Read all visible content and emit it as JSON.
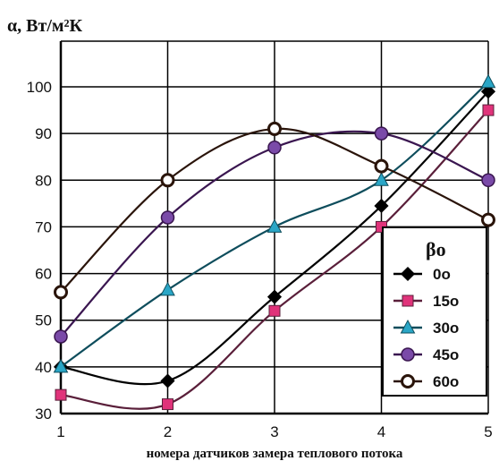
{
  "chart_data": {
    "type": "line",
    "ylabel": "α, Вт/м²К",
    "xlabel": "номера датчиков замера теплового потока",
    "x": [
      1,
      2,
      3,
      4,
      5
    ],
    "xlim": [
      1,
      5
    ],
    "ylim": [
      30,
      100
    ],
    "yticks": [
      30,
      40,
      50,
      60,
      70,
      80,
      90,
      100
    ],
    "grid": true,
    "smooth": true,
    "legend": {
      "title": "βo",
      "placement": "right",
      "entries": [
        "0o",
        "15o",
        "30o",
        "45o",
        "60o"
      ]
    },
    "series": [
      {
        "name": "0o",
        "values": [
          40,
          37,
          55,
          74.5,
          99
        ],
        "marker": "diamond",
        "color": "#000000",
        "marker_fill": "#000000"
      },
      {
        "name": "15o",
        "values": [
          34,
          32,
          52,
          70,
          95
        ],
        "marker": "square",
        "color": "#5a1f3a",
        "marker_fill": "#e0337a"
      },
      {
        "name": "30o",
        "values": [
          40,
          56.5,
          70,
          80,
          101
        ],
        "marker": "triangle",
        "color": "#0e4d5c",
        "marker_fill": "#2aa6c6"
      },
      {
        "name": "45o",
        "values": [
          46.5,
          72,
          87,
          90,
          80
        ],
        "marker": "circle",
        "color": "#3a1650",
        "marker_fill": "#7a4aa8"
      },
      {
        "name": "60o",
        "values": [
          56,
          80,
          91,
          83,
          71.5
        ],
        "marker": "circle-open",
        "color": "#2a140a",
        "marker_fill": "#ffffff"
      }
    ]
  }
}
